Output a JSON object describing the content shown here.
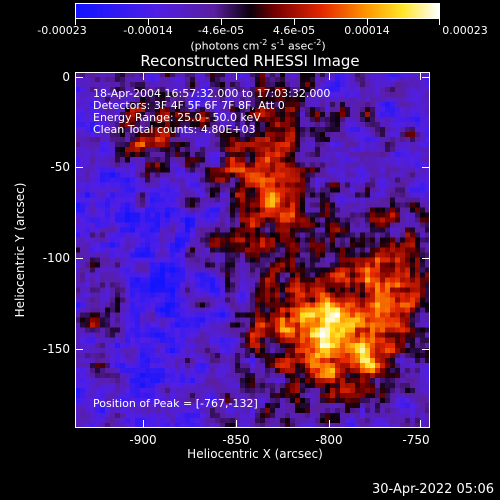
{
  "colorbar": {
    "labels": [
      "-0.00023",
      "-0.00014",
      "-4.6e-05",
      "4.6e-05",
      "0.00014",
      "0.00023"
    ],
    "unit_main": "(photons cm",
    "unit_sup1": "-2",
    "unit_mid1": " s",
    "unit_sup2": "-1",
    "unit_mid2": " asec",
    "unit_sup3": "-2",
    "unit_end": ")"
  },
  "title": "Reconstructed RHESSI Image",
  "info": {
    "time": "18-Apr-2004 16:57:32.000 to 17:03:32.000",
    "detectors": "Detectors: 3F 4F 5F 6F 7F 8F, Att 0",
    "energy": "Energy Range: 25.0 - 50.0 keV",
    "method": "Clean      Total counts: 4.80E+03",
    "peak": "Position of Peak = [-767,-132]"
  },
  "axes": {
    "xlabel": "Heliocentric X (arcsec)",
    "ylabel": "Heliocentric Y (arcsec)",
    "xticks": [
      "-900",
      "-850",
      "-800",
      "-750"
    ],
    "yticks": [
      "0",
      "-50",
      "-100",
      "-150"
    ],
    "xlim": [
      -933,
      -743
    ],
    "ylim": [
      -192,
      3
    ]
  },
  "timestamp": "30-Apr-2022 05:06",
  "colors": {
    "background": "#000000",
    "foreground": "#ffffff",
    "colormap": "rhessi-blue-purple-red-yellow-white"
  }
}
